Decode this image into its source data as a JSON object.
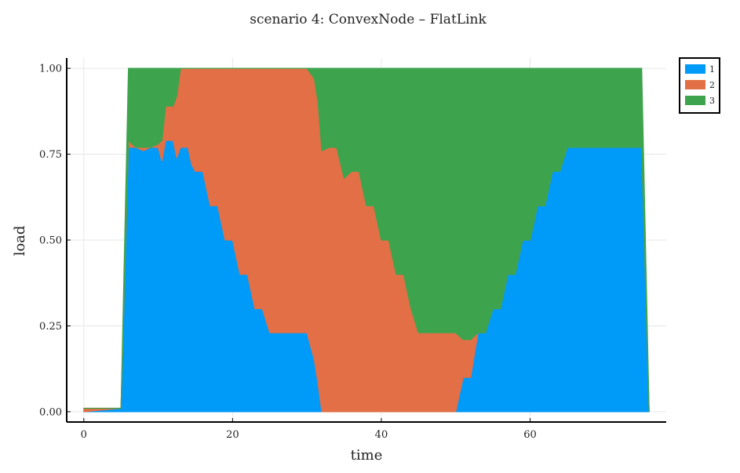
{
  "chart_data": {
    "type": "area",
    "stacked": true,
    "title": "scenario 4:  ConvexNode – FlatLink",
    "xlabel": "time",
    "ylabel": "load",
    "xlim": [
      -2.3,
      78.3
    ],
    "ylim": [
      -0.03,
      1.03
    ],
    "x_ticks": [
      0,
      20,
      40,
      60
    ],
    "x_tick_labels": [
      "0",
      "20",
      "40",
      "60"
    ],
    "y_ticks": [
      0,
      0.25,
      0.5,
      0.75,
      1.0
    ],
    "y_tick_labels": [
      "0.00",
      "0.25",
      "0.50",
      "0.75",
      "1.00"
    ],
    "grid": true,
    "legend_position": "top-right",
    "series": [
      {
        "name": "1",
        "color": "#009af9",
        "points": [
          [
            0,
            0
          ],
          [
            5,
            0.01
          ],
          [
            6,
            0.77
          ],
          [
            7,
            0.77
          ],
          [
            8,
            0.76
          ],
          [
            9,
            0.77
          ],
          [
            10,
            0.77
          ],
          [
            10.5,
            0.73
          ],
          [
            11,
            0.79
          ],
          [
            12,
            0.79
          ],
          [
            12.5,
            0.74
          ],
          [
            13,
            0.77
          ],
          [
            14,
            0.77
          ],
          [
            14.5,
            0.72
          ],
          [
            15,
            0.7
          ],
          [
            16,
            0.7
          ],
          [
            17,
            0.6
          ],
          [
            18,
            0.6
          ],
          [
            19,
            0.5
          ],
          [
            20,
            0.5
          ],
          [
            21,
            0.4
          ],
          [
            22,
            0.4
          ],
          [
            23,
            0.3
          ],
          [
            24,
            0.3
          ],
          [
            25,
            0.23
          ],
          [
            30,
            0.23
          ],
          [
            31,
            0.15
          ],
          [
            31.5,
            0.08
          ],
          [
            32,
            0
          ],
          [
            50,
            0
          ],
          [
            51,
            0.1
          ],
          [
            52,
            0.1
          ],
          [
            53,
            0.23
          ],
          [
            54,
            0.23
          ],
          [
            55,
            0.3
          ],
          [
            56,
            0.3
          ],
          [
            57,
            0.4
          ],
          [
            58,
            0.4
          ],
          [
            59,
            0.5
          ],
          [
            60,
            0.5
          ],
          [
            61,
            0.6
          ],
          [
            62,
            0.6
          ],
          [
            63,
            0.7
          ],
          [
            64,
            0.7
          ],
          [
            65,
            0.77
          ],
          [
            75,
            0.77
          ],
          [
            76,
            0
          ]
        ]
      },
      {
        "name": "2",
        "color": "#e26f46",
        "points": [
          [
            0,
            0.01
          ],
          [
            5,
            0
          ],
          [
            6,
            0.02
          ],
          [
            7,
            0
          ],
          [
            8,
            0.01
          ],
          [
            9,
            0
          ],
          [
            10,
            0.01
          ],
          [
            10.5,
            0.06
          ],
          [
            11,
            0.1
          ],
          [
            12,
            0.1
          ],
          [
            12.5,
            0.18
          ],
          [
            13,
            0.23
          ],
          [
            14,
            0.23
          ],
          [
            14.5,
            0.28
          ],
          [
            15,
            0.3
          ],
          [
            16,
            0.3
          ],
          [
            17,
            0.4
          ],
          [
            18,
            0.4
          ],
          [
            19,
            0.5
          ],
          [
            20,
            0.5
          ],
          [
            21,
            0.6
          ],
          [
            22,
            0.6
          ],
          [
            23,
            0.7
          ],
          [
            24,
            0.7
          ],
          [
            25,
            0.77
          ],
          [
            30,
            0.77
          ],
          [
            31,
            0.82
          ],
          [
            31.5,
            0.82
          ],
          [
            32,
            0.76
          ],
          [
            33,
            0.77
          ],
          [
            34,
            0.77
          ],
          [
            35,
            0.68
          ],
          [
            36,
            0.7
          ],
          [
            37,
            0.7
          ],
          [
            38,
            0.6
          ],
          [
            39,
            0.6
          ],
          [
            40,
            0.5
          ],
          [
            41,
            0.5
          ],
          [
            42,
            0.4
          ],
          [
            43,
            0.4
          ],
          [
            44,
            0.3
          ],
          [
            45,
            0.23
          ],
          [
            50,
            0.23
          ],
          [
            51,
            0.11
          ],
          [
            52,
            0.11
          ],
          [
            53,
            0
          ],
          [
            76,
            0
          ]
        ]
      },
      {
        "name": "3",
        "color": "#3da44d",
        "points": [
          [
            0,
            0
          ],
          [
            5,
            0
          ],
          [
            6,
            0.21
          ],
          [
            7,
            0.23
          ],
          [
            8,
            0.23
          ],
          [
            9,
            0.23
          ],
          [
            10,
            0.22
          ],
          [
            10.5,
            0.21
          ],
          [
            11,
            0.11
          ],
          [
            12,
            0.11
          ],
          [
            12.5,
            0.08
          ],
          [
            13,
            0
          ],
          [
            30,
            0
          ],
          [
            31,
            0.03
          ],
          [
            31.5,
            0.1
          ],
          [
            32,
            0.24
          ],
          [
            33,
            0.23
          ],
          [
            34,
            0.23
          ],
          [
            35,
            0.32
          ],
          [
            36,
            0.3
          ],
          [
            37,
            0.3
          ],
          [
            38,
            0.4
          ],
          [
            39,
            0.4
          ],
          [
            40,
            0.5
          ],
          [
            41,
            0.5
          ],
          [
            42,
            0.6
          ],
          [
            43,
            0.6
          ],
          [
            44,
            0.7
          ],
          [
            45,
            0.77
          ],
          [
            50,
            0.77
          ],
          [
            51,
            0.79
          ],
          [
            52,
            0.79
          ],
          [
            53,
            0.77
          ],
          [
            54,
            0.77
          ],
          [
            55,
            0.7
          ],
          [
            56,
            0.7
          ],
          [
            57,
            0.6
          ],
          [
            58,
            0.6
          ],
          [
            59,
            0.5
          ],
          [
            60,
            0.5
          ],
          [
            61,
            0.4
          ],
          [
            62,
            0.4
          ],
          [
            63,
            0.3
          ],
          [
            64,
            0.3
          ],
          [
            65,
            0.23
          ],
          [
            75,
            0.23
          ],
          [
            76,
            0
          ]
        ]
      }
    ]
  }
}
